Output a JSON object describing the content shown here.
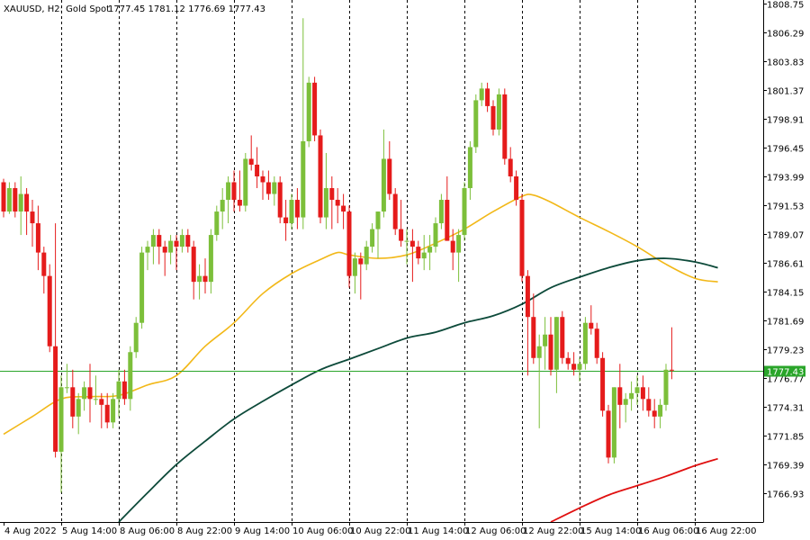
{
  "header": {
    "symbol_info": "XAUUSD, H2:  Gold Spot",
    "ohlc": "1777.45 1781.12 1776.69 1777.43"
  },
  "colors": {
    "bull": "#7cbf3a",
    "bear": "#e51b1b",
    "ma_fast": "#f2b818",
    "ma_mid": "#0d4a3a",
    "ma_slow": "#e01010",
    "price_line": "#2aa52a",
    "grid": "#000000"
  },
  "chart_data": {
    "type": "candlestick",
    "symbol": "XAUUSD",
    "timeframe": "H2",
    "ylim": [
      1764.5,
      1808.75
    ],
    "y_ticks": [
      "1808.75",
      "1806.29",
      "1803.83",
      "1801.37",
      "1798.91",
      "1796.45",
      "1793.99",
      "1791.53",
      "1789.07",
      "1786.61",
      "1784.15",
      "1781.69",
      "1779.23",
      "1776.77",
      "1774.31",
      "1771.85",
      "1769.39",
      "1766.93"
    ],
    "y_tick_values": [
      1808.75,
      1806.29,
      1803.83,
      1801.37,
      1798.91,
      1796.45,
      1793.99,
      1791.53,
      1789.07,
      1786.61,
      1784.15,
      1781.69,
      1779.23,
      1776.77,
      1774.31,
      1771.85,
      1769.39,
      1766.93
    ],
    "x_labels": [
      "4 Aug 2022",
      "5 Aug 14:00",
      "8 Aug 06:00",
      "8 Aug 22:00",
      "9 Aug 14:00",
      "10 Aug 06:00",
      "10 Aug 22:00",
      "11 Aug 14:00",
      "12 Aug 06:00",
      "12 Aug 22:00",
      "15 Aug 14:00",
      "16 Aug 06:00",
      "16 Aug 22:00"
    ],
    "x_label_bars": [
      0,
      10,
      20,
      30,
      40,
      50,
      60,
      70,
      80,
      90,
      100,
      110,
      120
    ],
    "last_price": 1777.43,
    "last_price_label": "1777.43",
    "candles": [
      [
        1793.5,
        1793.8,
        1790.5,
        1791.0
      ],
      [
        1791.0,
        1793.5,
        1790.8,
        1793.0
      ],
      [
        1793.0,
        1793.5,
        1790.5,
        1791.0
      ],
      [
        1791.0,
        1794.0,
        1789.0,
        1792.5
      ],
      [
        1792.5,
        1793.0,
        1789.0,
        1791.0
      ],
      [
        1791.0,
        1792.0,
        1788.0,
        1790.0
      ],
      [
        1790.0,
        1791.5,
        1786.0,
        1787.5
      ],
      [
        1787.5,
        1788.0,
        1784.0,
        1785.5
      ],
      [
        1785.5,
        1786.5,
        1779.0,
        1779.5
      ],
      [
        1779.5,
        1790.0,
        1770.0,
        1770.5
      ],
      [
        1770.5,
        1777.0,
        1767.0,
        1776.0
      ],
      [
        1776.0,
        1778.0,
        1775.5,
        1776.0
      ],
      [
        1776.0,
        1777.5,
        1772.5,
        1773.5
      ],
      [
        1773.5,
        1775.5,
        1772.0,
        1775.0
      ],
      [
        1775.0,
        1776.5,
        1774.0,
        1776.0
      ],
      [
        1776.0,
        1778.0,
        1773.0,
        1775.0
      ],
      [
        1775.0,
        1777.0,
        1774.5,
        1775.0
      ],
      [
        1775.0,
        1775.5,
        1772.5,
        1774.5
      ],
      [
        1774.5,
        1775.5,
        1772.5,
        1773.0
      ],
      [
        1773.0,
        1775.5,
        1772.5,
        1775.0
      ],
      [
        1775.0,
        1777.5,
        1773.5,
        1776.5
      ],
      [
        1776.5,
        1777.5,
        1774.5,
        1775.0
      ],
      [
        1775.0,
        1779.5,
        1774.0,
        1779.0
      ],
      [
        1779.0,
        1782.0,
        1778.5,
        1781.5
      ],
      [
        1781.5,
        1788.0,
        1781.0,
        1787.5
      ],
      [
        1787.5,
        1788.5,
        1786.0,
        1788.0
      ],
      [
        1788.0,
        1789.5,
        1786.5,
        1789.0
      ],
      [
        1789.0,
        1789.5,
        1786.5,
        1788.0
      ],
      [
        1788.0,
        1788.5,
        1785.5,
        1787.5
      ],
      [
        1787.5,
        1789.0,
        1786.5,
        1788.5
      ],
      [
        1788.5,
        1789.0,
        1786.0,
        1788.0
      ],
      [
        1788.0,
        1789.5,
        1787.5,
        1789.0
      ],
      [
        1789.0,
        1789.5,
        1787.5,
        1788.0
      ],
      [
        1788.0,
        1788.5,
        1783.5,
        1785.0
      ],
      [
        1785.0,
        1786.5,
        1783.5,
        1785.5
      ],
      [
        1785.5,
        1787.0,
        1784.0,
        1785.0
      ],
      [
        1785.0,
        1789.5,
        1784.0,
        1789.0
      ],
      [
        1789.0,
        1791.5,
        1788.5,
        1791.0
      ],
      [
        1791.0,
        1793.0,
        1789.5,
        1792.0
      ],
      [
        1792.0,
        1794.0,
        1790.0,
        1793.5
      ],
      [
        1793.5,
        1794.5,
        1791.0,
        1792.0
      ],
      [
        1792.0,
        1794.5,
        1791.0,
        1791.5
      ],
      [
        1791.5,
        1796.0,
        1791.0,
        1795.5
      ],
      [
        1795.5,
        1797.5,
        1794.5,
        1795.0
      ],
      [
        1795.0,
        1796.5,
        1793.0,
        1794.0
      ],
      [
        1794.0,
        1794.5,
        1792.0,
        1793.5
      ],
      [
        1793.5,
        1794.5,
        1792.0,
        1792.5
      ],
      [
        1792.5,
        1794.0,
        1791.5,
        1793.5
      ],
      [
        1793.5,
        1794.0,
        1790.0,
        1790.5
      ],
      [
        1790.5,
        1792.0,
        1788.5,
        1790.0
      ],
      [
        1790.0,
        1792.5,
        1789.5,
        1792.0
      ],
      [
        1792.0,
        1793.0,
        1789.5,
        1790.5
      ],
      [
        1790.5,
        1807.5,
        1789.5,
        1797.0
      ],
      [
        1797.0,
        1802.5,
        1796.5,
        1802.0
      ],
      [
        1802.0,
        1802.5,
        1797.0,
        1797.5
      ],
      [
        1797.5,
        1798.0,
        1790.0,
        1790.5
      ],
      [
        1790.5,
        1796.0,
        1789.5,
        1793.0
      ],
      [
        1793.0,
        1794.0,
        1789.5,
        1792.0
      ],
      [
        1792.0,
        1793.0,
        1790.0,
        1791.5
      ],
      [
        1791.5,
        1792.5,
        1789.5,
        1791.0
      ],
      [
        1791.0,
        1791.5,
        1784.5,
        1785.5
      ],
      [
        1785.5,
        1787.5,
        1784.0,
        1787.0
      ],
      [
        1787.0,
        1787.5,
        1783.5,
        1786.5
      ],
      [
        1786.5,
        1788.5,
        1786.0,
        1788.0
      ],
      [
        1788.0,
        1790.0,
        1787.5,
        1789.5
      ],
      [
        1789.5,
        1791.0,
        1787.0,
        1791.0
      ],
      [
        1791.0,
        1798.0,
        1790.5,
        1795.5
      ],
      [
        1795.5,
        1797.0,
        1792.0,
        1792.5
      ],
      [
        1792.5,
        1793.0,
        1789.0,
        1789.5
      ],
      [
        1789.5,
        1792.0,
        1788.0,
        1788.5
      ],
      [
        1788.5,
        1789.5,
        1786.5,
        1788.5
      ],
      [
        1788.5,
        1789.5,
        1785.0,
        1788.0
      ],
      [
        1788.0,
        1788.5,
        1786.5,
        1787.0
      ],
      [
        1787.0,
        1789.0,
        1786.0,
        1787.5
      ],
      [
        1787.5,
        1789.0,
        1786.0,
        1788.0
      ],
      [
        1788.0,
        1790.5,
        1787.5,
        1790.0
      ],
      [
        1790.0,
        1792.5,
        1789.5,
        1792.0
      ],
      [
        1792.0,
        1794.0,
        1788.5,
        1788.5
      ],
      [
        1788.5,
        1789.5,
        1786.0,
        1787.5
      ],
      [
        1787.5,
        1789.5,
        1785.0,
        1789.0
      ],
      [
        1789.0,
        1793.5,
        1788.5,
        1793.0
      ],
      [
        1793.0,
        1797.0,
        1792.0,
        1796.5
      ],
      [
        1796.5,
        1801.0,
        1796.0,
        1800.5
      ],
      [
        1800.5,
        1802.0,
        1800.0,
        1801.5
      ],
      [
        1801.5,
        1802.0,
        1799.5,
        1800.0
      ],
      [
        1800.0,
        1800.5,
        1797.5,
        1798.0
      ],
      [
        1798.0,
        1801.5,
        1797.5,
        1801.0
      ],
      [
        1801.0,
        1801.5,
        1795.0,
        1795.5
      ],
      [
        1795.5,
        1796.5,
        1793.5,
        1794.0
      ],
      [
        1794.0,
        1794.5,
        1791.5,
        1792.0
      ],
      [
        1792.0,
        1792.5,
        1785.0,
        1785.5
      ],
      [
        1785.5,
        1786.0,
        1777.0,
        1782.0
      ],
      [
        1782.0,
        1784.0,
        1778.0,
        1778.5
      ],
      [
        1778.5,
        1780.5,
        1772.5,
        1779.5
      ],
      [
        1779.5,
        1782.0,
        1777.5,
        1780.5
      ],
      [
        1780.5,
        1782.0,
        1777.0,
        1777.5
      ],
      [
        1777.5,
        1782.0,
        1775.5,
        1782.0
      ],
      [
        1782.0,
        1782.5,
        1778.0,
        1778.5
      ],
      [
        1778.5,
        1779.0,
        1777.5,
        1778.0
      ],
      [
        1778.0,
        1779.0,
        1777.0,
        1777.5
      ],
      [
        1777.5,
        1778.5,
        1776.5,
        1778.0
      ],
      [
        1778.0,
        1782.0,
        1777.5,
        1781.5
      ],
      [
        1781.5,
        1783.0,
        1780.5,
        1781.0
      ],
      [
        1781.0,
        1781.5,
        1778.0,
        1778.5
      ],
      [
        1778.5,
        1779.0,
        1773.5,
        1774.0
      ],
      [
        1774.0,
        1774.5,
        1769.5,
        1770.0
      ],
      [
        1770.0,
        1776.0,
        1769.5,
        1776.0
      ],
      [
        1776.0,
        1778.0,
        1772.5,
        1774.5
      ],
      [
        1774.5,
        1775.5,
        1773.0,
        1775.0
      ],
      [
        1775.0,
        1776.5,
        1774.0,
        1775.5
      ],
      [
        1775.5,
        1777.0,
        1774.5,
        1776.0
      ],
      [
        1776.0,
        1777.0,
        1774.0,
        1775.0
      ],
      [
        1775.0,
        1776.0,
        1773.5,
        1774.0
      ],
      [
        1774.0,
        1775.0,
        1772.5,
        1773.5
      ],
      [
        1773.5,
        1775.0,
        1772.5,
        1774.5
      ],
      [
        1774.5,
        1778.0,
        1774.0,
        1777.5
      ],
      [
        1777.5,
        1781.12,
        1776.69,
        1777.43
      ]
    ],
    "ma_fast_points": [
      [
        0,
        1772.0
      ],
      [
        5,
        1773.5
      ],
      [
        10,
        1775.0
      ],
      [
        15,
        1775.2
      ],
      [
        20,
        1775.3
      ],
      [
        25,
        1776.2
      ],
      [
        30,
        1777.0
      ],
      [
        35,
        1779.5
      ],
      [
        40,
        1781.5
      ],
      [
        45,
        1784.0
      ],
      [
        50,
        1785.7
      ],
      [
        55,
        1786.9
      ],
      [
        58,
        1787.5
      ],
      [
        60,
        1787.3
      ],
      [
        65,
        1787.0
      ],
      [
        70,
        1787.3
      ],
      [
        75,
        1788.3
      ],
      [
        80,
        1789.5
      ],
      [
        85,
        1791.0
      ],
      [
        90,
        1792.3
      ],
      [
        92,
        1792.4
      ],
      [
        95,
        1791.8
      ],
      [
        100,
        1790.5
      ],
      [
        105,
        1789.3
      ],
      [
        110,
        1788.0
      ],
      [
        115,
        1786.5
      ],
      [
        120,
        1785.3
      ],
      [
        124,
        1785.0
      ]
    ],
    "ma_mid_points": [
      [
        20,
        1764.5
      ],
      [
        25,
        1767.0
      ],
      [
        30,
        1769.4
      ],
      [
        35,
        1771.4
      ],
      [
        40,
        1773.3
      ],
      [
        45,
        1774.8
      ],
      [
        50,
        1776.2
      ],
      [
        55,
        1777.5
      ],
      [
        60,
        1778.4
      ],
      [
        65,
        1779.3
      ],
      [
        70,
        1780.2
      ],
      [
        75,
        1780.7
      ],
      [
        80,
        1781.5
      ],
      [
        85,
        1782.1
      ],
      [
        90,
        1783.1
      ],
      [
        95,
        1784.5
      ],
      [
        100,
        1785.4
      ],
      [
        105,
        1786.2
      ],
      [
        110,
        1786.8
      ],
      [
        115,
        1787.0
      ],
      [
        120,
        1786.7
      ],
      [
        124,
        1786.2
      ]
    ],
    "ma_slow_points": [
      [
        95,
        1764.5
      ],
      [
        100,
        1765.7
      ],
      [
        105,
        1766.8
      ],
      [
        110,
        1767.6
      ],
      [
        115,
        1768.4
      ],
      [
        120,
        1769.3
      ],
      [
        124,
        1769.9
      ]
    ]
  }
}
